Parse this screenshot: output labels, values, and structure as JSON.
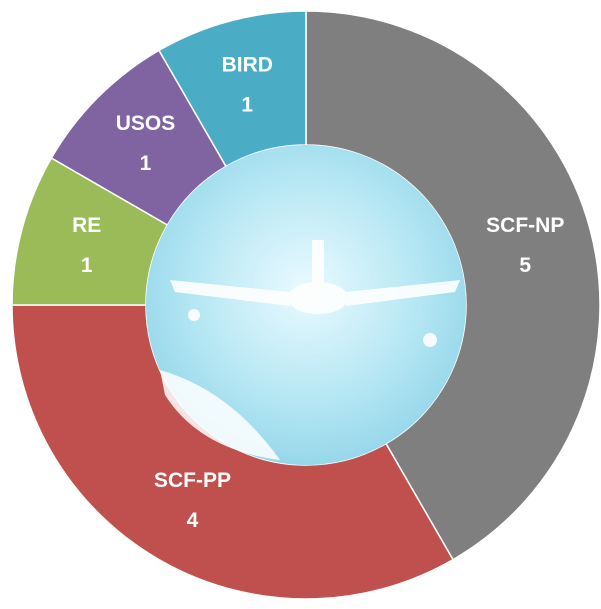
{
  "chart_data": {
    "type": "donut",
    "categories": [
      "SCF-NP",
      "SCF-PP",
      "RE",
      "USOS",
      "BIRD"
    ],
    "values": [
      5,
      4,
      1,
      1,
      1
    ],
    "colors": [
      "#7f7f7f",
      "#c0504d",
      "#9bbb59",
      "#8064a2",
      "#4bacc6"
    ]
  }
}
